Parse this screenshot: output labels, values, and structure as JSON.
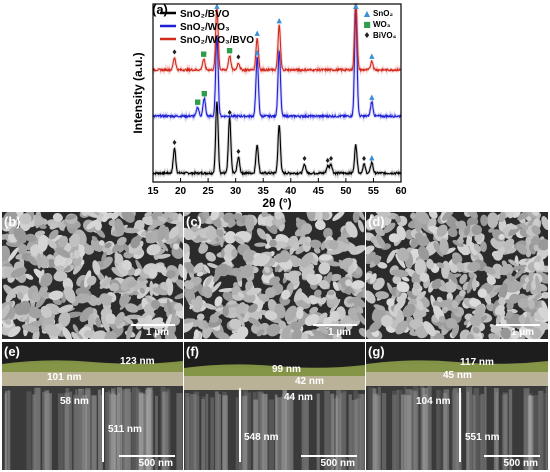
{
  "figure": {
    "panel_a_label": "(a)",
    "panels": [
      {
        "id": "b",
        "label": "(b)",
        "scale": "1 µm"
      },
      {
        "id": "c",
        "label": "(c)",
        "scale": "1 µm"
      },
      {
        "id": "d",
        "label": "(d)",
        "scale": "1 µm"
      },
      {
        "id": "e",
        "label": "(e)",
        "scale": "500 nm",
        "dims": [
          "123 nm",
          "101 nm",
          "58 nm",
          "511 nm"
        ]
      },
      {
        "id": "f",
        "label": "(f)",
        "scale": "500 nm",
        "dims": [
          "99 nm",
          "42 nm",
          "44 nm",
          "548 nm"
        ]
      },
      {
        "id": "g",
        "label": "(g)",
        "scale": "500 nm",
        "dims": [
          "117 nm",
          "45 nm",
          "104 nm",
          "551 nm"
        ]
      }
    ]
  },
  "chart_data": {
    "type": "line",
    "title": "",
    "xlabel": "2θ (°)",
    "ylabel": "Intensity (a.u.)",
    "xlim": [
      15,
      60
    ],
    "x_ticks": [
      "15",
      "20",
      "25",
      "30",
      "35",
      "40",
      "45",
      "50",
      "55",
      "60"
    ],
    "legend_series": [
      {
        "name": "SnO₂/BVO",
        "color": "#000000"
      },
      {
        "name": "SnO₂/WO₃",
        "color": "#1f1fd6"
      },
      {
        "name": "SnO₂/WO₃/BVO",
        "color": "#d42a1e"
      }
    ],
    "legend_markers": [
      {
        "name": "SnO₂",
        "symbol": "▲",
        "color": "#3b8fd6"
      },
      {
        "name": "WO₃",
        "symbol": "■",
        "color": "#2e9e4a"
      },
      {
        "name": "BiVO₄",
        "symbol": "♦",
        "color": "#222222"
      }
    ],
    "series": [
      {
        "name": "SnO₂/BVO",
        "color": "#000000",
        "baseline": 0.05,
        "peaks": [
          [
            18.9,
            0.14
          ],
          [
            26.6,
            0.4
          ],
          [
            28.9,
            0.31
          ],
          [
            30.5,
            0.09
          ],
          [
            33.9,
            0.16
          ],
          [
            37.9,
            0.27
          ],
          [
            42.5,
            0.05
          ],
          [
            46.7,
            0.04
          ],
          [
            47.3,
            0.05
          ],
          [
            51.8,
            0.16
          ],
          [
            53.3,
            0.05
          ],
          [
            54.7,
            0.06
          ]
        ]
      },
      {
        "name": "SnO₂/WO₃",
        "color": "#1f1fd6",
        "baseline": 0.37,
        "peaks": [
          [
            23.1,
            0.05
          ],
          [
            24.3,
            0.1
          ],
          [
            26.6,
            0.45
          ],
          [
            33.9,
            0.33
          ],
          [
            37.9,
            0.37
          ],
          [
            51.8,
            0.6
          ],
          [
            54.7,
            0.08
          ]
        ]
      },
      {
        "name": "SnO₂/WO₃/BVO",
        "color": "#d42a1e",
        "baseline": 0.63,
        "peaks": [
          [
            18.9,
            0.07
          ],
          [
            24.2,
            0.06
          ],
          [
            26.6,
            0.35
          ],
          [
            28.9,
            0.08
          ],
          [
            30.5,
            0.04
          ],
          [
            33.9,
            0.18
          ],
          [
            37.9,
            0.25
          ],
          [
            51.8,
            0.4
          ],
          [
            54.7,
            0.05
          ]
        ]
      }
    ],
    "peak_markers": [
      {
        "x": 26.6,
        "symbol": "▲",
        "series": "SnO₂/WO₃/BVO"
      },
      {
        "x": 33.9,
        "symbol": "▲",
        "series": "SnO₂/WO₃/BVO"
      },
      {
        "x": 37.9,
        "symbol": "▲",
        "series": "SnO₂/WO₃/BVO"
      },
      {
        "x": 51.8,
        "symbol": "▲",
        "series": "SnO₂/WO₃/BVO"
      },
      {
        "x": 54.7,
        "symbol": "▲",
        "series": "SnO₂/WO₃/BVO"
      },
      {
        "x": 18.9,
        "symbol": "♦",
        "series": "SnO₂/WO₃/BVO"
      },
      {
        "x": 24.2,
        "symbol": "■",
        "series": "SnO₂/WO₃/BVO"
      },
      {
        "x": 28.9,
        "symbol": "■",
        "series": "SnO₂/WO₃/BVO"
      },
      {
        "x": 30.5,
        "symbol": "♦",
        "series": "SnO₂/WO₃/BVO"
      },
      {
        "x": 24.3,
        "symbol": "■",
        "series": "SnO₂/WO₃"
      },
      {
        "x": 23.1,
        "symbol": "■",
        "series": "SnO₂/WO₃"
      },
      {
        "x": 33.9,
        "symbol": "▲",
        "series": "SnO₂/WO₃"
      },
      {
        "x": 51.8,
        "symbol": "▲",
        "series": "SnO₂/WO₃"
      },
      {
        "x": 54.7,
        "symbol": "▲",
        "series": "SnO₂/WO₃"
      },
      {
        "x": 18.9,
        "symbol": "♦",
        "series": "SnO₂/BVO"
      },
      {
        "x": 28.9,
        "symbol": "♦",
        "series": "SnO₂/BVO"
      },
      {
        "x": 30.5,
        "symbol": "♦",
        "series": "SnO₂/BVO"
      },
      {
        "x": 42.5,
        "symbol": "♦",
        "series": "SnO₂/BVO"
      },
      {
        "x": 46.7,
        "symbol": "♦",
        "series": "SnO₂/BVO"
      },
      {
        "x": 47.3,
        "symbol": "♦",
        "series": "SnO₂/BVO"
      },
      {
        "x": 53.3,
        "symbol": "♦",
        "series": "SnO₂/BVO"
      },
      {
        "x": 54.7,
        "symbol": "▲",
        "series": "SnO₂/BVO"
      }
    ]
  }
}
